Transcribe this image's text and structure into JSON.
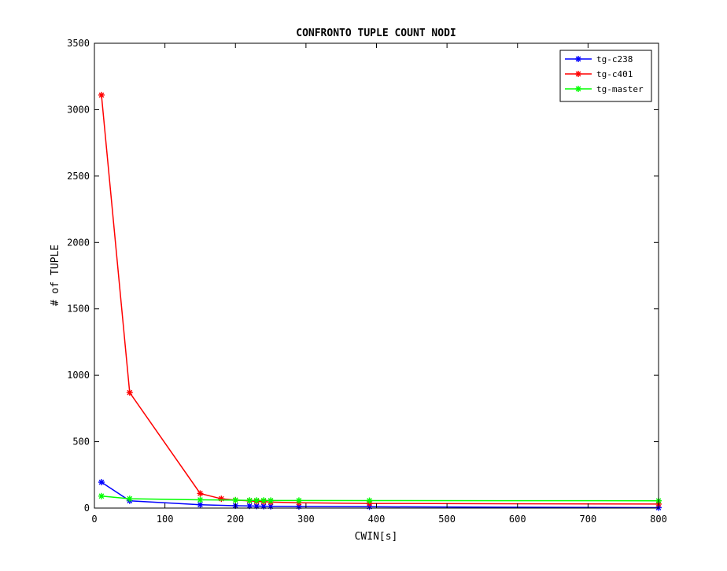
{
  "chart_data": {
    "type": "line",
    "title": "CONFRONTO TUPLE COUNT NODI",
    "xlabel": "CWIN[s]",
    "ylabel": "# of TUPLE",
    "xlim": [
      0,
      800
    ],
    "ylim": [
      0,
      3500
    ],
    "xticks": [
      0,
      100,
      200,
      300,
      400,
      500,
      600,
      700,
      800
    ],
    "yticks": [
      0,
      500,
      1000,
      1500,
      2000,
      2500,
      3000,
      3500
    ],
    "xtick_labels": [
      "0",
      "100",
      "200",
      "300",
      "400",
      "500",
      "600",
      "700",
      "800"
    ],
    "ytick_labels": [
      "0",
      "500",
      "1000",
      "1500",
      "2000",
      "2500",
      "3000",
      "3500"
    ],
    "grid": false,
    "legend_position": "top-right",
    "series": [
      {
        "name": "tg-c238",
        "color": "#0000ff",
        "marker": "asterisk",
        "x": [
          10,
          50,
          150,
          200,
          220,
          230,
          240,
          250,
          290,
          390,
          800
        ],
        "y": [
          195,
          55,
          25,
          18,
          16,
          15,
          14,
          13,
          12,
          10,
          3
        ]
      },
      {
        "name": "tg-c401",
        "color": "#ff0000",
        "marker": "asterisk",
        "x": [
          10,
          50,
          150,
          180,
          200,
          220,
          230,
          240,
          250,
          290,
          390,
          800
        ],
        "y": [
          3110,
          870,
          110,
          70,
          60,
          55,
          50,
          48,
          45,
          40,
          35,
          30
        ]
      },
      {
        "name": "tg-master",
        "color": "#00ff00",
        "marker": "asterisk",
        "x": [
          10,
          50,
          150,
          200,
          220,
          230,
          240,
          250,
          290,
          390,
          800
        ],
        "y": [
          90,
          70,
          62,
          60,
          58,
          58,
          58,
          57,
          57,
          56,
          55
        ]
      }
    ]
  }
}
